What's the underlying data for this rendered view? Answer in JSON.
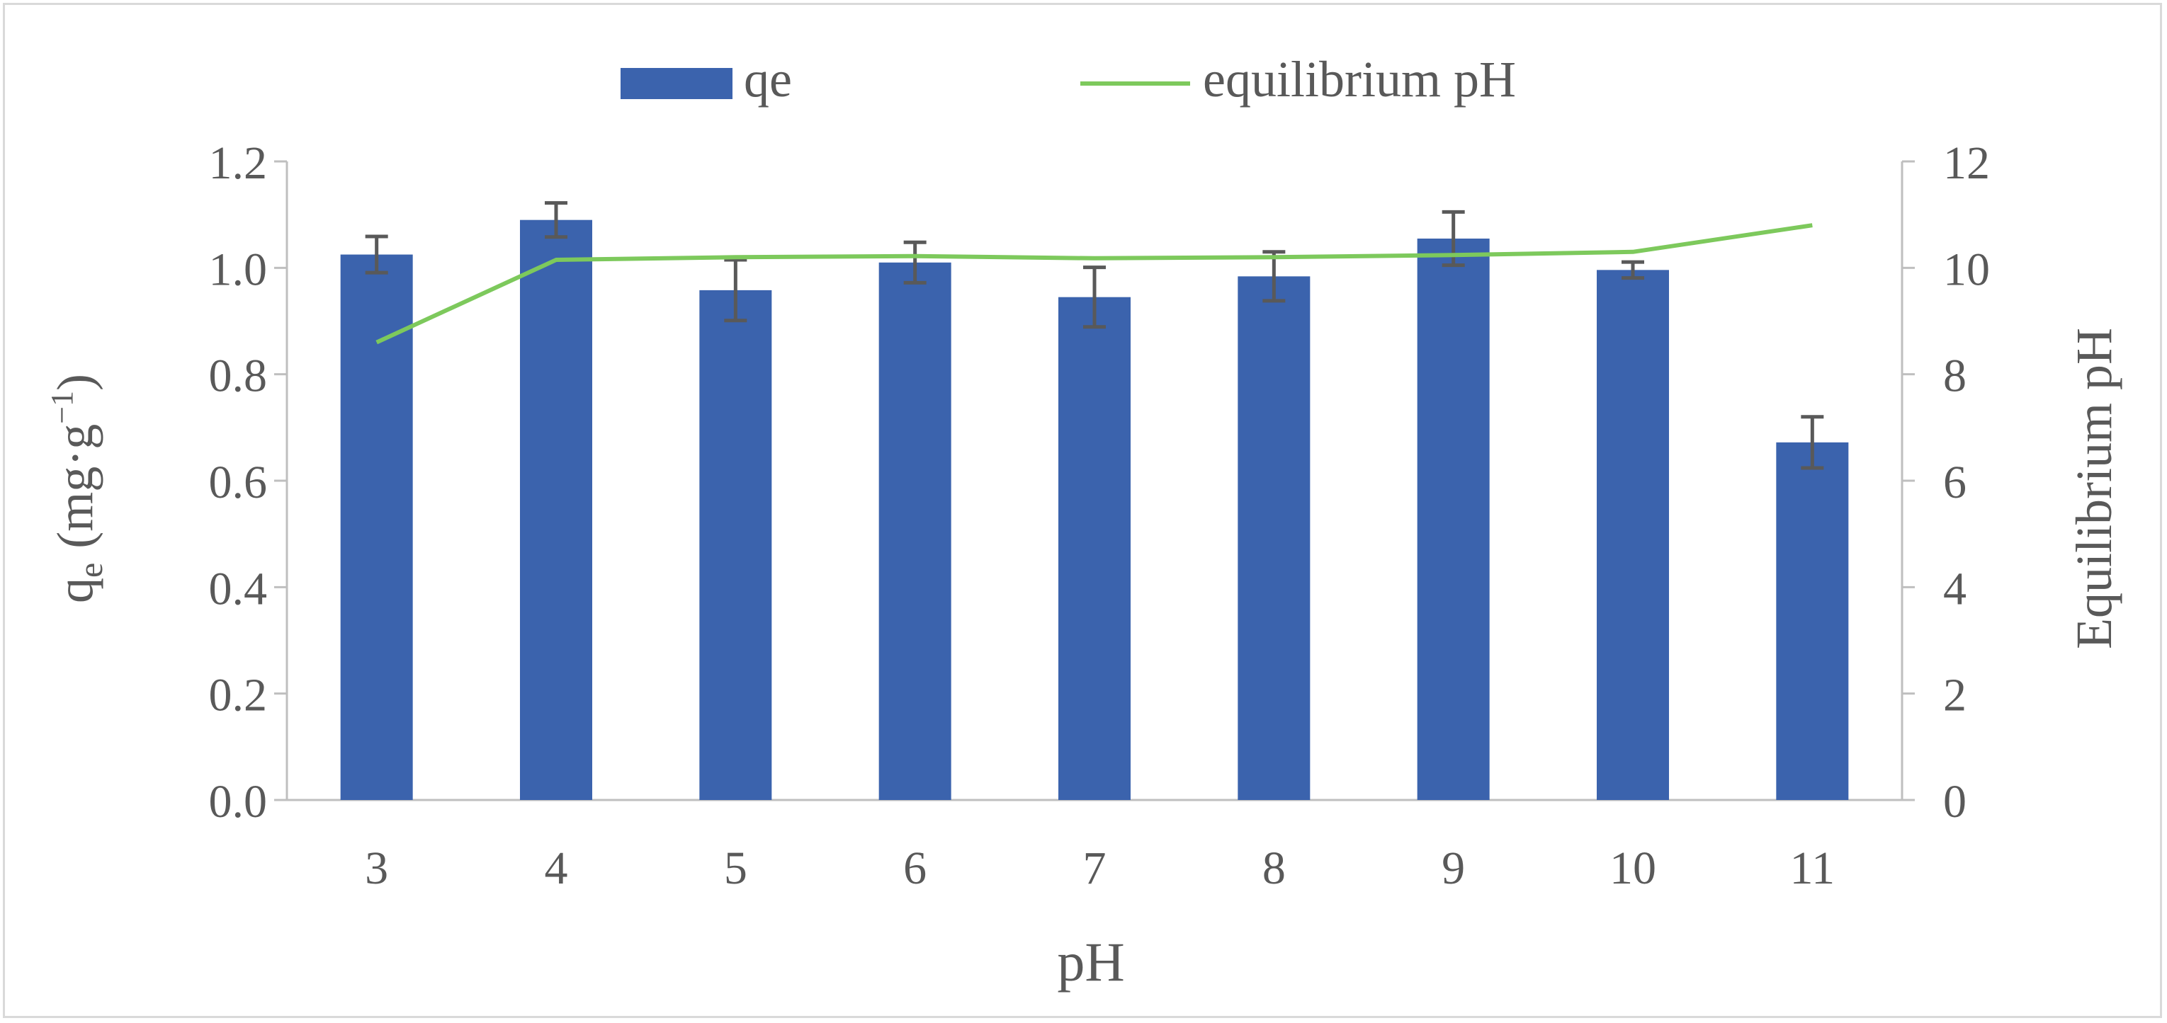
{
  "chart_data": {
    "type": "bar",
    "categories": [
      "3",
      "4",
      "5",
      "6",
      "7",
      "8",
      "9",
      "10",
      "11"
    ],
    "series": [
      {
        "name": "qe",
        "type": "bar",
        "axis": "left",
        "values": [
          1.025,
          1.09,
          0.958,
          1.01,
          0.945,
          0.984,
          1.055,
          0.996,
          0.672
        ],
        "error": [
          0.034,
          0.032,
          0.057,
          0.038,
          0.056,
          0.046,
          0.05,
          0.015,
          0.048
        ],
        "color": "#3B63AD"
      },
      {
        "name": "equilibrium pH",
        "type": "line",
        "axis": "right",
        "values": [
          8.6,
          10.15,
          10.2,
          10.22,
          10.18,
          10.2,
          10.24,
          10.3,
          10.8
        ],
        "color": "#7DC95C"
      }
    ],
    "xlabel": "pH",
    "ylabel_main": "q",
    "ylabel_sub": "e",
    "ylabel_unit": "(mg·g",
    "ylabel_sup": "−1",
    "ylabel_close": ")",
    "y2label": "Equilibrium pH",
    "ylim": [
      0,
      1.2
    ],
    "y2lim": [
      0,
      12
    ],
    "yticks": [
      "0.0",
      "0.2",
      "0.4",
      "0.6",
      "0.8",
      "1.0",
      "1.2"
    ],
    "y2ticks": [
      "0",
      "2",
      "4",
      "6",
      "8",
      "10",
      "12"
    ],
    "grid": false,
    "legend_position": "top"
  }
}
